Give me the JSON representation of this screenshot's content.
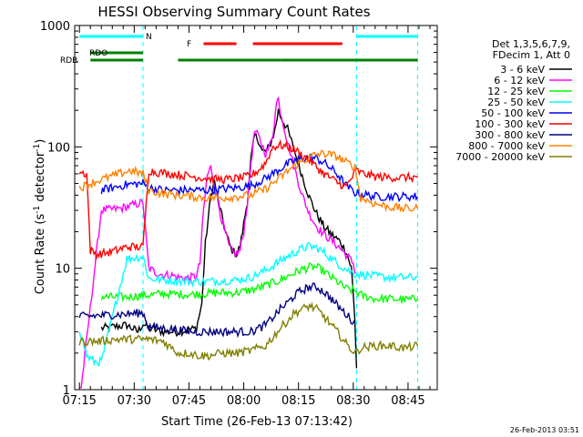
{
  "chart_data": {
    "type": "line",
    "title": "HESSI Observing Summary Count Rates",
    "xlabel": "Start Time (26-Feb-13 07:13:42)",
    "ylabel_main": "Count Rate (s",
    "ylabel_sup1": "-1",
    "ylabel_mid": " detector",
    "ylabel_sup2": "-1",
    "ylabel_end": ")",
    "yscale": "log",
    "xlim": [
      "07:13",
      "08:53"
    ],
    "ylim": [
      1,
      1000
    ],
    "x_ticks": [
      "07:15",
      "07:30",
      "07:45",
      "08:00",
      "08:15",
      "08:30",
      "08:45"
    ],
    "x_tick_minutes": [
      15,
      30,
      45,
      60,
      75,
      90,
      105
    ],
    "y_ticks": [
      {
        "v": 1,
        "label": "1"
      },
      {
        "v": 10,
        "label": "10"
      },
      {
        "v": 100,
        "label": "100"
      },
      {
        "v": 1000,
        "label": "1000"
      }
    ],
    "legend_header": [
      "Det 1,3,5,6,7,9,",
      "FDecim 1, Att 0"
    ],
    "night_boundaries_min": [
      32.4,
      90.9,
      107.6
    ],
    "flags": {
      "N": {
        "label": "N",
        "color": "#00ffff",
        "intervals": [
          [
            15,
            32.4
          ],
          [
            90.9,
            107.6
          ]
        ]
      },
      "F": {
        "label": "F",
        "color": "#ff0000",
        "intervals": [
          [
            49,
            58
          ],
          [
            62.5,
            87
          ]
        ]
      },
      "RDO": {
        "label": "RDO",
        "color": "#008000",
        "intervals": [
          [
            18,
            32.4
          ]
        ]
      },
      "RDB": {
        "label": "RDB",
        "color": "#008000",
        "intervals": [
          [
            18,
            32.4
          ],
          [
            42,
            70
          ],
          [
            70,
            90.9
          ],
          [
            90.9,
            107.6
          ]
        ]
      }
    },
    "series": [
      {
        "name": "3 - 6 keV",
        "color": "#000000",
        "points": [
          [
            21,
            3.2
          ],
          [
            28,
            3.4
          ],
          [
            31,
            3.0
          ],
          [
            32.4,
            3.5
          ],
          [
            34,
            3.2
          ],
          [
            38,
            3.0
          ],
          [
            42,
            3.0
          ],
          [
            47,
            3.2
          ],
          [
            48.5,
            5
          ],
          [
            49.5,
            16
          ],
          [
            51,
            40
          ],
          [
            52,
            52
          ],
          [
            53,
            36
          ],
          [
            55,
            20
          ],
          [
            56.5,
            14.5
          ],
          [
            58,
            13
          ],
          [
            59,
            15
          ],
          [
            61,
            36
          ],
          [
            62,
            80
          ],
          [
            63,
            124
          ],
          [
            64,
            115
          ],
          [
            65,
            92
          ],
          [
            66,
            92
          ],
          [
            67,
            100
          ],
          [
            68.5,
            135
          ],
          [
            69.5,
            200
          ],
          [
            70,
            180
          ],
          [
            72,
            140
          ],
          [
            74,
            90
          ],
          [
            76,
            58
          ],
          [
            78,
            38
          ],
          [
            80,
            28
          ],
          [
            82,
            22
          ],
          [
            84,
            19
          ],
          [
            86,
            17
          ],
          [
            88,
            14
          ],
          [
            89.5,
            10
          ],
          [
            90.4,
            4
          ],
          [
            90.9,
            1.5
          ]
        ]
      },
      {
        "name": "6 - 12 keV",
        "color": "#ff00ff",
        "points": [
          [
            15,
            1.05
          ],
          [
            15.5,
            1.05
          ],
          [
            21,
            30
          ],
          [
            26,
            31
          ],
          [
            31,
            34
          ],
          [
            32.4,
            35
          ],
          [
            34,
            10
          ],
          [
            36,
            9.2
          ],
          [
            38,
            8.8
          ],
          [
            40,
            8.8
          ],
          [
            42,
            8.4
          ],
          [
            45,
            8.3
          ],
          [
            47,
            8.6
          ],
          [
            48,
            11
          ],
          [
            49,
            30
          ],
          [
            50,
            58
          ],
          [
            51,
            68
          ],
          [
            52,
            48
          ],
          [
            54,
            25
          ],
          [
            56,
            15
          ],
          [
            57,
            13.5
          ],
          [
            58,
            13
          ],
          [
            59,
            14
          ],
          [
            60,
            20
          ],
          [
            61,
            35
          ],
          [
            62,
            75
          ],
          [
            63,
            135
          ],
          [
            64,
            122
          ],
          [
            65,
            104
          ],
          [
            66,
            88
          ],
          [
            67,
            100
          ],
          [
            68,
            130
          ],
          [
            69,
            230
          ],
          [
            69.5,
            250
          ],
          [
            70,
            200
          ],
          [
            72,
            110
          ],
          [
            74,
            65
          ],
          [
            76,
            40
          ],
          [
            78,
            28
          ],
          [
            80,
            22
          ],
          [
            82,
            19
          ],
          [
            84,
            17
          ],
          [
            86,
            15
          ],
          [
            88,
            13
          ],
          [
            90,
            11
          ],
          [
            90.5,
            9
          ]
        ]
      },
      {
        "name": "12 - 25 keV",
        "color": "#00ff00",
        "points": [
          [
            21,
            5.8
          ],
          [
            24,
            5.8
          ],
          [
            28,
            5.8
          ],
          [
            32.4,
            6.0
          ],
          [
            34,
            6.0
          ],
          [
            38,
            6.2
          ],
          [
            42,
            6.1
          ],
          [
            46,
            6.1
          ],
          [
            50,
            6.2
          ],
          [
            54,
            6.3
          ],
          [
            58,
            6.3
          ],
          [
            62,
            6.6
          ],
          [
            66,
            7.2
          ],
          [
            70,
            8.0
          ],
          [
            72,
            8.6
          ],
          [
            74,
            9.2
          ],
          [
            76,
            9.8
          ],
          [
            78,
            10.2
          ],
          [
            80,
            10.2
          ],
          [
            82,
            9.4
          ],
          [
            84,
            8.4
          ],
          [
            86,
            7.6
          ],
          [
            88,
            6.8
          ],
          [
            90.5,
            6.5
          ],
          [
            92,
            6.0
          ],
          [
            96,
            5.6
          ],
          [
            100,
            5.6
          ],
          [
            104,
            5.5
          ],
          [
            107.6,
            5.6
          ]
        ]
      },
      {
        "name": "25 - 50 keV",
        "color": "#00ffff",
        "points": [
          [
            15,
            3.2
          ],
          [
            17,
            1.9
          ],
          [
            19,
            1.7
          ],
          [
            21,
            1.7
          ],
          [
            28,
            12
          ],
          [
            32.4,
            12.5
          ],
          [
            34,
            8.2
          ],
          [
            38,
            8.0
          ],
          [
            42,
            7.9
          ],
          [
            46,
            7.8
          ],
          [
            50,
            7.8
          ],
          [
            54,
            7.9
          ],
          [
            58,
            8.0
          ],
          [
            62,
            8.4
          ],
          [
            66,
            9.6
          ],
          [
            70,
            11.5
          ],
          [
            72,
            12.5
          ],
          [
            74,
            13.5
          ],
          [
            76,
            14.5
          ],
          [
            78,
            15.2
          ],
          [
            80,
            14.8
          ],
          [
            82,
            13.5
          ],
          [
            84,
            12
          ],
          [
            86,
            10.8
          ],
          [
            88,
            9.8
          ],
          [
            90.5,
            9.0
          ],
          [
            92,
            8.9
          ],
          [
            96,
            8.6
          ],
          [
            100,
            8.4
          ],
          [
            104,
            8.4
          ],
          [
            107.6,
            8.4
          ]
        ]
      },
      {
        "name": "50 - 100 keV",
        "color": "#0000ff",
        "points": [
          [
            21,
            44
          ],
          [
            24,
            46
          ],
          [
            28,
            49
          ],
          [
            32.4,
            50
          ],
          [
            34,
            46
          ],
          [
            38,
            44
          ],
          [
            42,
            44
          ],
          [
            46,
            44
          ],
          [
            50,
            44
          ],
          [
            54,
            45
          ],
          [
            58,
            46
          ],
          [
            62,
            48
          ],
          [
            66,
            55
          ],
          [
            70,
            66
          ],
          [
            72,
            72
          ],
          [
            74,
            77
          ],
          [
            76,
            80
          ],
          [
            78,
            82
          ],
          [
            80,
            80
          ],
          [
            82,
            74
          ],
          [
            84,
            66
          ],
          [
            86,
            58
          ],
          [
            88,
            48
          ],
          [
            90.5,
            42
          ],
          [
            92,
            41
          ],
          [
            96,
            39
          ],
          [
            100,
            39
          ],
          [
            104,
            39
          ],
          [
            107.6,
            39
          ]
        ]
      },
      {
        "name": "100 - 300 keV",
        "color": "#ff0000",
        "points": [
          [
            15,
            62
          ],
          [
            17,
            60
          ],
          [
            18,
            14
          ],
          [
            20,
            13
          ],
          [
            23,
            13.5
          ],
          [
            25,
            14
          ],
          [
            28,
            15
          ],
          [
            31,
            15
          ],
          [
            32.4,
            15
          ],
          [
            34,
            64
          ],
          [
            36,
            62
          ],
          [
            40,
            60
          ],
          [
            44,
            58
          ],
          [
            48,
            56
          ],
          [
            52,
            54
          ],
          [
            56,
            54
          ],
          [
            58,
            55
          ],
          [
            60,
            56
          ],
          [
            62,
            58
          ],
          [
            64,
            64
          ],
          [
            66,
            74
          ],
          [
            68,
            100
          ],
          [
            70,
            103
          ],
          [
            72,
            100
          ],
          [
            74,
            95
          ],
          [
            76,
            85
          ],
          [
            78,
            78
          ],
          [
            80,
            68
          ],
          [
            82,
            60
          ],
          [
            84,
            55
          ],
          [
            86,
            50
          ],
          [
            88,
            47
          ],
          [
            90.9,
            64
          ],
          [
            92,
            61
          ],
          [
            96,
            57
          ],
          [
            100,
            56
          ],
          [
            104,
            56
          ],
          [
            107.6,
            56
          ]
        ]
      },
      {
        "name": "300 - 800 keV",
        "color": "#000080",
        "points": [
          [
            15,
            4.0
          ],
          [
            28,
            4.2
          ],
          [
            32.4,
            4.3
          ],
          [
            34,
            3.3
          ],
          [
            38,
            3.2
          ],
          [
            42,
            3.1
          ],
          [
            46,
            3.0
          ],
          [
            50,
            3.0
          ],
          [
            54,
            3.0
          ],
          [
            58,
            3.0
          ],
          [
            62,
            3.0
          ],
          [
            66,
            3.4
          ],
          [
            70,
            4.6
          ],
          [
            72,
            5.2
          ],
          [
            74,
            6.0
          ],
          [
            76,
            6.6
          ],
          [
            78,
            7.0
          ],
          [
            80,
            7.0
          ],
          [
            82,
            6.4
          ],
          [
            84,
            5.6
          ],
          [
            86,
            4.8
          ],
          [
            88,
            4.2
          ],
          [
            90.5,
            3.5
          ]
        ]
      },
      {
        "name": "800 - 7000 keV",
        "color": "#ff8000",
        "points": [
          [
            15,
            46
          ],
          [
            18,
            50
          ],
          [
            22,
            55
          ],
          [
            26,
            60
          ],
          [
            29,
            64
          ],
          [
            32.4,
            60
          ],
          [
            34,
            44
          ],
          [
            38,
            41
          ],
          [
            42,
            40
          ],
          [
            46,
            39
          ],
          [
            50,
            38
          ],
          [
            54,
            38
          ],
          [
            58,
            39
          ],
          [
            62,
            40
          ],
          [
            66,
            45
          ],
          [
            70,
            56
          ],
          [
            72,
            63
          ],
          [
            74,
            70
          ],
          [
            76,
            76
          ],
          [
            78,
            82
          ],
          [
            80,
            87
          ],
          [
            82,
            88
          ],
          [
            84,
            86
          ],
          [
            86,
            82
          ],
          [
            88,
            75
          ],
          [
            90.5,
            68
          ],
          [
            92,
            38
          ],
          [
            96,
            34
          ],
          [
            100,
            32
          ],
          [
            104,
            31
          ],
          [
            107.6,
            31
          ]
        ]
      },
      {
        "name": "7000 - 20000 keV",
        "color": "#808000",
        "points": [
          [
            15,
            2.5
          ],
          [
            20,
            2.5
          ],
          [
            25,
            2.6
          ],
          [
            30,
            2.6
          ],
          [
            32.4,
            2.6
          ],
          [
            34,
            2.6
          ],
          [
            38,
            2.5
          ],
          [
            42,
            2.0
          ],
          [
            45,
            2.0
          ],
          [
            48,
            1.9
          ],
          [
            50,
            1.9
          ],
          [
            54,
            2.0
          ],
          [
            58,
            2.0
          ],
          [
            62,
            2.1
          ],
          [
            66,
            2.3
          ],
          [
            70,
            3.2
          ],
          [
            74,
            4.3
          ],
          [
            78,
            4.9
          ],
          [
            80,
            4.6
          ],
          [
            82,
            4.0
          ],
          [
            84,
            3.4
          ],
          [
            86,
            2.9
          ],
          [
            88,
            2.4
          ],
          [
            90.5,
            2.0
          ],
          [
            92,
            2.2
          ],
          [
            96,
            2.3
          ],
          [
            100,
            2.3
          ],
          [
            104,
            2.2
          ],
          [
            107.6,
            2.3
          ]
        ]
      }
    ]
  },
  "footer_timestamp": "26-Feb-2013 03:51"
}
